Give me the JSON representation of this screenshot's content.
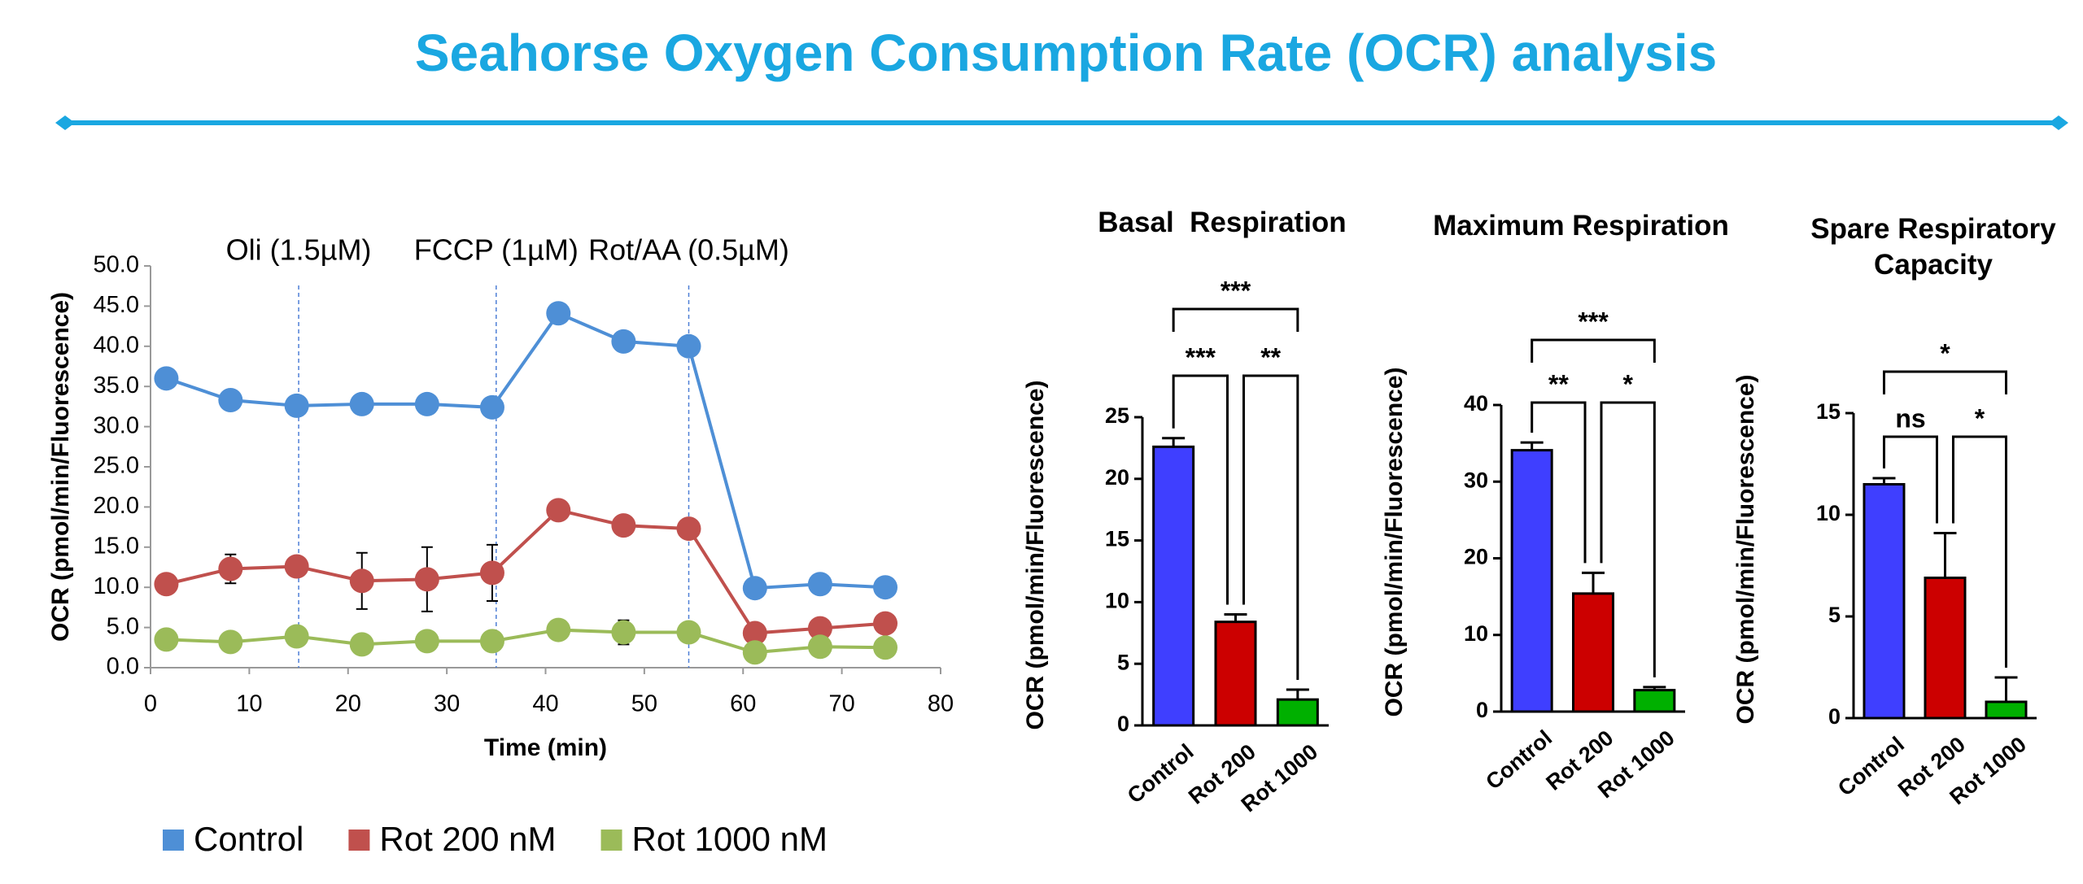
{
  "title": "Seahorse Oxygen Consumption Rate (OCR) analysis",
  "chart_data": [
    {
      "type": "line",
      "x_label": "Time (min)",
      "y_label": "OCR (pmol/min/Fluorescence)",
      "x": [
        1.6,
        8.1,
        14.8,
        21.4,
        28,
        34.6,
        41.3,
        47.9,
        54.5,
        61.2,
        67.8,
        74.4
      ],
      "series": [
        {
          "name": "Control",
          "color": "#4e8fd6",
          "values": [
            36,
            33.3,
            32.6,
            32.8,
            32.8,
            32.4,
            44.1,
            40.6,
            40.0,
            9.9,
            10.4,
            10.0
          ]
        },
        {
          "name": "Rot 200 nM",
          "color": "#c0504d",
          "values": [
            10.4,
            12.3,
            12.6,
            10.8,
            11.0,
            11.8,
            19.6,
            17.7,
            17.3,
            4.3,
            4.9,
            5.5
          ],
          "errors": [
            0.5,
            1.8,
            0.8,
            3.5,
            4.0,
            3.5,
            0.8,
            0.5,
            0.5,
            0.5,
            0.5,
            0.5
          ]
        },
        {
          "name": "Rot 1000 nM",
          "color": "#9bbb59",
          "values": [
            3.5,
            3.2,
            3.9,
            2.9,
            3.3,
            3.3,
            4.7,
            4.4,
            4.4,
            1.9,
            2.6,
            2.5
          ],
          "errors": [
            0.3,
            0.3,
            0.3,
            0.3,
            0.3,
            0.3,
            0.3,
            1.5,
            0.3,
            0.3,
            0.3,
            0.3
          ]
        }
      ],
      "xlim": [
        0,
        80
      ],
      "xticks": [
        0,
        10,
        20,
        30,
        40,
        50,
        60,
        70,
        80
      ],
      "ylim": [
        0,
        50
      ],
      "yticks": [
        {
          "value": 0,
          "label": "0.0"
        },
        {
          "value": 5,
          "label": "5.0"
        },
        {
          "value": 10,
          "label": "10.0"
        },
        {
          "value": 15,
          "label": "15.0"
        },
        {
          "value": 20,
          "label": "20.0"
        },
        {
          "value": 25,
          "label": "25.0"
        },
        {
          "value": 30,
          "label": "30.0"
        },
        {
          "value": 35,
          "label": "35.0"
        },
        {
          "value": 40,
          "label": "40.0"
        },
        {
          "value": 45,
          "label": "45.0"
        },
        {
          "value": 50,
          "label": "50.0"
        }
      ],
      "annotations": [
        {
          "text": "Oli (1.5µM)",
          "x": 15
        },
        {
          "text": "FCCP (1µM)",
          "x": 35
        },
        {
          "text": "Rot/AA (0.5µM)",
          "x": 54.5
        }
      ],
      "legend": "bottom"
    },
    {
      "type": "bar",
      "title": "Basal  Respiration",
      "y_label": "OCR  (pmol/min/Fluorescence)",
      "categories": [
        "Control",
        "Rot 200",
        "Rot 1000"
      ],
      "values": [
        22.6,
        8.4,
        2.1
      ],
      "errors": [
        0.7,
        0.6,
        0.8
      ],
      "colors": [
        "#3f3fff",
        "#cc0000",
        "#00b000"
      ],
      "ylim": [
        0,
        25
      ],
      "yticks": [
        0,
        5,
        10,
        15,
        20,
        25
      ],
      "significance": [
        {
          "from": 0,
          "to": 2,
          "label": "***"
        },
        {
          "from": 0,
          "to": 1,
          "label": "***"
        },
        {
          "from": 1,
          "to": 2,
          "label": "**"
        }
      ]
    },
    {
      "type": "bar",
      "title": "Maximum Respiration",
      "y_label": "OCR  (pmol/min/Fluorescence)",
      "categories": [
        "Control",
        "Rot 200",
        "Rot 1000"
      ],
      "values": [
        34.1,
        15.4,
        2.8
      ],
      "errors": [
        1.0,
        2.7,
        0.4
      ],
      "colors": [
        "#3f3fff",
        "#cc0000",
        "#00b000"
      ],
      "ylim": [
        0,
        40
      ],
      "yticks": [
        0,
        10,
        20,
        30,
        40
      ],
      "significance": [
        {
          "from": 0,
          "to": 2,
          "label": "***"
        },
        {
          "from": 0,
          "to": 1,
          "label": "**"
        },
        {
          "from": 1,
          "to": 2,
          "label": "*"
        }
      ]
    },
    {
      "type": "bar",
      "title": "Spare Respiratory Capacity",
      "y_label": "OCR  (pmol/min/Fluorescence)",
      "categories": [
        "Control",
        "Rot 200",
        "Rot 1000"
      ],
      "values": [
        11.5,
        6.9,
        0.8
      ],
      "errors": [
        0.3,
        2.2,
        1.2
      ],
      "colors": [
        "#3f3fff",
        "#cc0000",
        "#00b000"
      ],
      "ylim": [
        0,
        15
      ],
      "yticks": [
        0,
        5,
        10,
        15
      ],
      "significance": [
        {
          "from": 0,
          "to": 2,
          "label": "*"
        },
        {
          "from": 0,
          "to": 1,
          "label": "ns"
        },
        {
          "from": 1,
          "to": 2,
          "label": "*"
        }
      ]
    }
  ]
}
